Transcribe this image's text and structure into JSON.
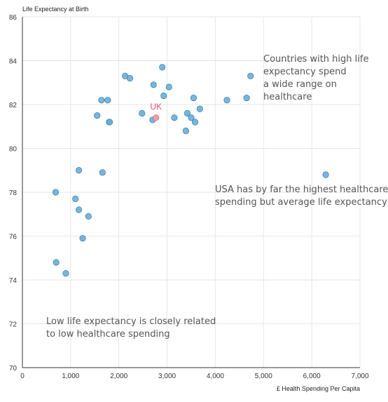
{
  "chart_data": {
    "type": "scatter",
    "title": "",
    "ylabel": "Life Expectancy at Birth",
    "xlabel": "£ Health Spending Per Capita",
    "xlim": [
      0,
      7000
    ],
    "ylim": [
      70,
      86
    ],
    "x_ticks": [
      0,
      1000,
      2000,
      3000,
      4000,
      5000,
      6000,
      7000
    ],
    "x_tick_labels": [
      "0",
      "1,000",
      "2,000",
      "3,000",
      "4,000",
      "5,000",
      "6,000",
      "7,000"
    ],
    "y_ticks": [
      70,
      72,
      74,
      76,
      78,
      80,
      82,
      84,
      86
    ],
    "y_tick_labels": [
      "70",
      "72",
      "74",
      "76",
      "78",
      "80",
      "82",
      "84",
      "86"
    ],
    "grid": true,
    "colors": {
      "points": "#6baed6",
      "point_edge": "#3a88b8",
      "highlight": "#f49ab0",
      "highlight_label": "#d9536f",
      "grid": "#e6e6e6",
      "axis": "#333333"
    },
    "points": [
      {
        "x": 700,
        "y": 74.8
      },
      {
        "x": 900,
        "y": 74.3
      },
      {
        "x": 690,
        "y": 78.0
      },
      {
        "x": 1100,
        "y": 77.7
      },
      {
        "x": 1170,
        "y": 77.2
      },
      {
        "x": 1250,
        "y": 75.9
      },
      {
        "x": 1370,
        "y": 76.9
      },
      {
        "x": 1170,
        "y": 79.0
      },
      {
        "x": 1660,
        "y": 78.9
      },
      {
        "x": 1550,
        "y": 81.5
      },
      {
        "x": 1640,
        "y": 82.2
      },
      {
        "x": 1770,
        "y": 82.2
      },
      {
        "x": 1800,
        "y": 81.2
      },
      {
        "x": 1810,
        "y": 81.2
      },
      {
        "x": 2130,
        "y": 83.3
      },
      {
        "x": 2230,
        "y": 83.2
      },
      {
        "x": 2480,
        "y": 81.6
      },
      {
        "x": 2700,
        "y": 81.3
      },
      {
        "x": 2720,
        "y": 82.9
      },
      {
        "x": 2900,
        "y": 83.7
      },
      {
        "x": 2930,
        "y": 82.4
      },
      {
        "x": 3040,
        "y": 82.8
      },
      {
        "x": 3150,
        "y": 81.4
      },
      {
        "x": 3390,
        "y": 80.8
      },
      {
        "x": 3420,
        "y": 81.6
      },
      {
        "x": 3500,
        "y": 81.4
      },
      {
        "x": 3550,
        "y": 82.3
      },
      {
        "x": 3580,
        "y": 81.2
      },
      {
        "x": 3680,
        "y": 81.8
      },
      {
        "x": 4240,
        "y": 82.2
      },
      {
        "x": 4650,
        "y": 82.3
      },
      {
        "x": 4730,
        "y": 83.3
      },
      {
        "x": 6290,
        "y": 78.8
      }
    ],
    "highlight": {
      "label": "UK",
      "x": 2770,
      "y": 81.4
    },
    "annotations": [
      {
        "lines": [
          "Countries with high life",
          "expectancy spend",
          "a wide range on",
          "healthcare"
        ]
      },
      {
        "lines": [
          "USA has by far the highest healthcare",
          "spending but average life expectancy"
        ]
      },
      {
        "lines": [
          "Low life expectancy is closely related",
          "to low healthcare spending"
        ]
      }
    ]
  }
}
